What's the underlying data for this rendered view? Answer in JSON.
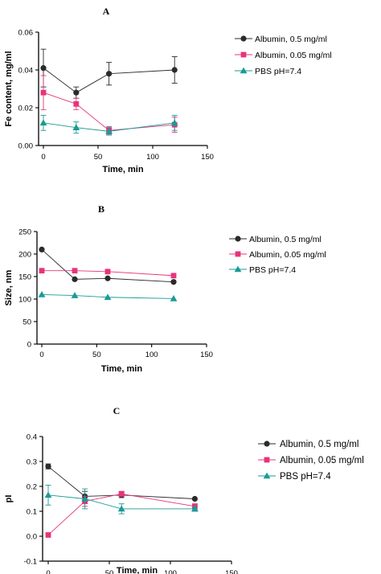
{
  "chart_data": [
    {
      "panel": "A",
      "type": "line",
      "xlabel": "Time, min",
      "ylabel": "Fe content, mg/ml",
      "xlim": [
        0,
        150
      ],
      "ylim": [
        0,
        0.06
      ],
      "x_ticks": [
        "0",
        "50",
        "100",
        "150"
      ],
      "y_ticks": [
        "0.00",
        "0.02",
        "0.04",
        "0.06"
      ],
      "legend_position": "right",
      "series": [
        {
          "name": "Albumin, 0.5 mg/ml",
          "color": "#2b2b2b",
          "marker": "circle",
          "x": [
            0,
            30,
            60,
            120
          ],
          "values": [
            0.041,
            0.028,
            0.038,
            0.04
          ],
          "errors": [
            0.01,
            0.003,
            0.006,
            0.007
          ]
        },
        {
          "name": "Albumin, 0.05 mg/ml",
          "color": "#e8337a",
          "marker": "square",
          "x": [
            0,
            30,
            60,
            120
          ],
          "values": [
            0.028,
            0.022,
            0.008,
            0.011
          ],
          "errors": [
            0.009,
            0.003,
            0.002,
            0.004
          ]
        },
        {
          "name": "PBS pH=7.4",
          "color": "#1a9b96",
          "marker": "triangle",
          "x": [
            0,
            30,
            60,
            120
          ],
          "values": [
            0.012,
            0.0095,
            0.0075,
            0.012
          ],
          "errors": [
            0.004,
            0.003,
            0.002,
            0.004
          ]
        }
      ]
    },
    {
      "panel": "B",
      "type": "line",
      "xlabel": "Time, min",
      "ylabel": "Size, nm",
      "xlim": [
        0,
        150
      ],
      "ylim": [
        0,
        250
      ],
      "x_ticks": [
        "0",
        "50",
        "100",
        "150"
      ],
      "y_ticks": [
        "0",
        "50",
        "100",
        "150",
        "200",
        "250"
      ],
      "legend_position": "right",
      "series": [
        {
          "name": "Albumin, 0.5 mg/ml",
          "color": "#2b2b2b",
          "marker": "circle",
          "x": [
            0,
            30,
            60,
            120
          ],
          "values": [
            210,
            144,
            146,
            138
          ],
          "errors": [
            0,
            0,
            0,
            0
          ]
        },
        {
          "name": "Albumin, 0.05 mg/ml",
          "color": "#e8337a",
          "marker": "square",
          "x": [
            0,
            30,
            60,
            120
          ],
          "values": [
            163,
            163,
            161,
            152
          ],
          "errors": [
            0,
            0,
            3,
            0
          ]
        },
        {
          "name": "PBS pH=7.4",
          "color": "#1a9b96",
          "marker": "triangle",
          "x": [
            0,
            30,
            60,
            120
          ],
          "values": [
            110,
            108,
            104,
            101
          ],
          "errors": [
            0,
            0,
            0,
            0
          ]
        }
      ]
    },
    {
      "panel": "C",
      "type": "line",
      "xlabel": "Time, min",
      "ylabel": "pI",
      "xlim": [
        0,
        150
      ],
      "ylim": [
        -0.1,
        0.4
      ],
      "x_ticks": [
        "0",
        "50",
        "100",
        "150"
      ],
      "y_ticks": [
        "-0.1",
        "0.0",
        "0.1",
        "0.2",
        "0.3",
        "0.4"
      ],
      "legend_position": "right",
      "series": [
        {
          "name": "Albumin, 0.5 mg/ml",
          "color": "#2b2b2b",
          "marker": "circle",
          "x": [
            0,
            30,
            60,
            120
          ],
          "values": [
            0.28,
            0.16,
            0.165,
            0.15
          ],
          "errors": [
            0.01,
            0.02,
            0.01,
            0
          ]
        },
        {
          "name": "Albumin, 0.05 mg/ml",
          "color": "#e8337a",
          "marker": "square",
          "x": [
            0,
            30,
            60,
            120
          ],
          "values": [
            0.005,
            0.14,
            0.17,
            0.12
          ],
          "errors": [
            0,
            0.02,
            0.01,
            0.01
          ]
        },
        {
          "name": "PBS pH=7.4",
          "color": "#1a9b96",
          "marker": "triangle",
          "x": [
            0,
            30,
            60,
            120
          ],
          "values": [
            0.165,
            0.15,
            0.11,
            0.11
          ],
          "errors": [
            0.04,
            0.04,
            0.02,
            0.01
          ]
        }
      ]
    }
  ]
}
